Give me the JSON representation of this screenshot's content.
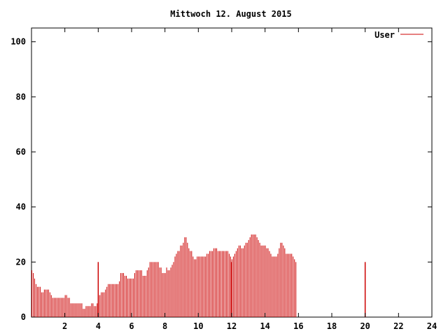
{
  "chart_data": {
    "type": "bar",
    "title": "Mittwoch 12. August 2015",
    "xlabel": "",
    "ylabel": "",
    "xlim": [
      0,
      24
    ],
    "ylim": [
      0,
      105
    ],
    "x_ticks": [
      2,
      4,
      6,
      8,
      10,
      12,
      14,
      16,
      18,
      20,
      22,
      24
    ],
    "y_ticks": [
      0,
      20,
      40,
      60,
      80,
      100
    ],
    "grid": false,
    "legend_position": "top-right",
    "colors": {
      "series": "#cc0000",
      "axes": "#000000",
      "background": "#ffffff"
    },
    "series": [
      {
        "name": "User",
        "interval_hours": 0.0833,
        "values": [
          17,
          16,
          14,
          12,
          11,
          11,
          11,
          9,
          9,
          10,
          10,
          10,
          10,
          9,
          8,
          7,
          7,
          7,
          7,
          7,
          7,
          7,
          7,
          7,
          8,
          8,
          7,
          7,
          5,
          5,
          5,
          5,
          5,
          5,
          5,
          5,
          5,
          3,
          3,
          4,
          4,
          4,
          4,
          5,
          5,
          4,
          4,
          5,
          8,
          8,
          9,
          9,
          9,
          10,
          11,
          12,
          12,
          12,
          12,
          12,
          12,
          12,
          12,
          13,
          16,
          16,
          16,
          15,
          15,
          14,
          14,
          14,
          14,
          14,
          16,
          17,
          17,
          17,
          17,
          17,
          15,
          15,
          15,
          17,
          18,
          20,
          20,
          20,
          20,
          20,
          20,
          20,
          18,
          18,
          16,
          16,
          16,
          18,
          17,
          17,
          18,
          19,
          20,
          22,
          23,
          24,
          24,
          26,
          26,
          27,
          29,
          29,
          27,
          25,
          24,
          24,
          22,
          21,
          21,
          22,
          22,
          22,
          22,
          22,
          22,
          22,
          23,
          23,
          24,
          24,
          24,
          25,
          25,
          25,
          24,
          24,
          24,
          24,
          24,
          24,
          24,
          24,
          23,
          22,
          21,
          22,
          23,
          24,
          25,
          26,
          26,
          25,
          25,
          26,
          27,
          27,
          28,
          29,
          30,
          30,
          30,
          30,
          29,
          28,
          27,
          26,
          26,
          26,
          26,
          25,
          25,
          24,
          23,
          22,
          22,
          22,
          22,
          23,
          25,
          27,
          27,
          26,
          25,
          23,
          23,
          23,
          23,
          23,
          22,
          21,
          20
        ]
      }
    ],
    "vertical_markers_at": [
      4,
      12,
      20
    ]
  }
}
